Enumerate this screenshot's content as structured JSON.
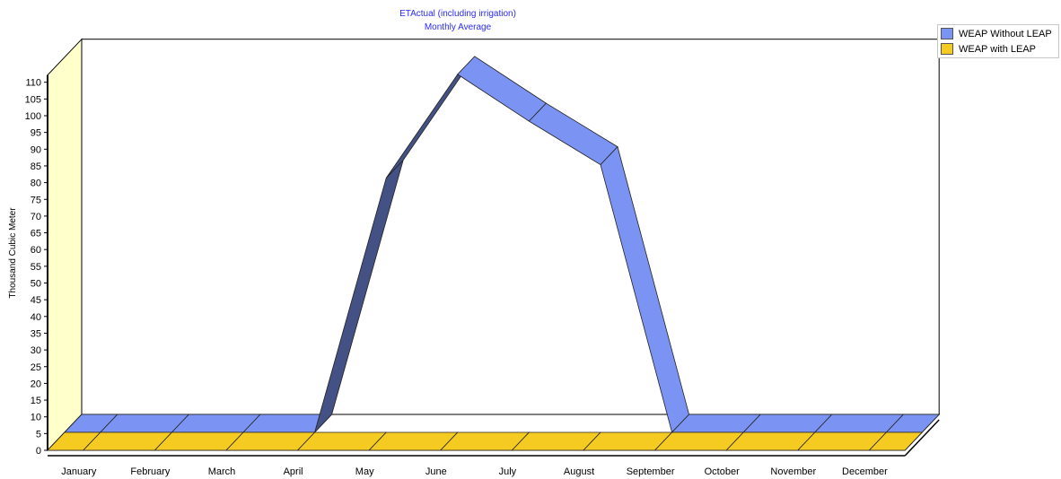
{
  "chart_data": {
    "type": "area",
    "title": "ETActual (including irrigation)",
    "subtitle": "Monthly Average",
    "xlabel": "",
    "ylabel": "Thousand Cubic Meter",
    "categories": [
      "January",
      "February",
      "March",
      "April",
      "May",
      "June",
      "July",
      "August",
      "September",
      "October",
      "November",
      "December"
    ],
    "series": [
      {
        "name": "WEAP Without LEAP",
        "values": [
          0,
          0,
          0,
          0,
          76,
          107,
          93,
          80,
          0,
          0,
          0,
          0
        ],
        "color": "#7b93f2"
      },
      {
        "name": "WEAP with LEAP",
        "values": [
          0,
          0,
          0,
          0,
          0,
          0,
          0,
          0,
          0,
          0,
          0,
          0
        ],
        "color": "#f5cb22"
      }
    ],
    "ylim": [
      0,
      110
    ],
    "yticks": [
      0,
      5,
      10,
      15,
      20,
      25,
      30,
      35,
      40,
      45,
      50,
      55,
      60,
      65,
      70,
      75,
      80,
      85,
      90,
      95,
      100,
      105,
      110
    ],
    "three_d": true,
    "grid": false,
    "legend_position": "top-right"
  }
}
